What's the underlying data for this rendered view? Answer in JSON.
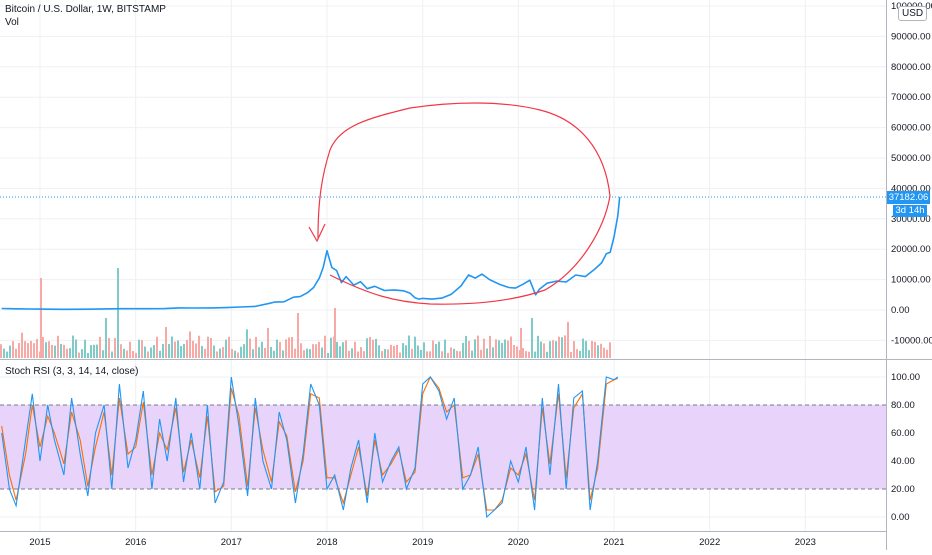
{
  "header": {
    "title": "Bitcoin / U.S. Dollar, 1W, BITSTAMP",
    "volume_label": "Vol",
    "currency": "USD"
  },
  "oscillator": {
    "title": "Stoch RSI (3, 3, 14, 14, close)"
  },
  "price_badge": {
    "value": "37182.06",
    "countdown": "3d 14h"
  },
  "colors": {
    "price_line": "#2196f3",
    "k_line": "#2196f3",
    "d_line": "#ff6d00",
    "band_fill": "#e8d4fb",
    "annotation": "#f23645",
    "volume_up": "#7ecbc7",
    "volume_down": "#f6a9a5",
    "grid": "#eef0f3"
  },
  "chart_data": [
    {
      "type": "line",
      "title": "Bitcoin / U.S. Dollar, 1W, BITSTAMP",
      "x_tick_labels": [
        "2015",
        "2016",
        "2017",
        "2018",
        "2019",
        "2020",
        "2021",
        "2022",
        "2023"
      ],
      "y_tick_labels": [
        "-10000.00",
        "0.00",
        "10000.00",
        "20000.00",
        "30000.00",
        "40000.00",
        "50000.00",
        "60000.00",
        "70000.00",
        "80000.00",
        "90000.00",
        "100000.00"
      ],
      "ylim": [
        -14000,
        101000
      ],
      "xlim": [
        2014.6,
        2023.9
      ],
      "log_scale": false,
      "grid": true,
      "last_value": 37182.06,
      "series": [
        {
          "name": "Bitcoin / U.S. Dollar",
          "x": [
            2014.6,
            2014.75,
            2014.9,
            2015.0,
            2015.1,
            2015.25,
            2015.5,
            2015.75,
            2015.85,
            2015.95,
            2016.1,
            2016.3,
            2016.45,
            2016.6,
            2016.8,
            2016.95,
            2017.1,
            2017.25,
            2017.4,
            2017.45,
            2017.55,
            2017.65,
            2017.72,
            2017.8,
            2017.86,
            2017.92,
            2017.96,
            2018.0,
            2018.05,
            2018.1,
            2018.15,
            2018.2,
            2018.28,
            2018.35,
            2018.42,
            2018.5,
            2018.6,
            2018.7,
            2018.8,
            2018.87,
            2018.92,
            2018.96,
            2019.0,
            2019.1,
            2019.2,
            2019.3,
            2019.4,
            2019.48,
            2019.55,
            2019.62,
            2019.7,
            2019.8,
            2019.9,
            2019.97,
            2020.05,
            2020.12,
            2020.18,
            2020.22,
            2020.3,
            2020.4,
            2020.5,
            2020.6,
            2020.7,
            2020.8,
            2020.87,
            2020.92,
            2020.96,
            2021.0,
            2021.04,
            2021.06
          ],
          "values": [
            480,
            380,
            320,
            280,
            250,
            240,
            260,
            380,
            420,
            440,
            420,
            450,
            680,
            650,
            700,
            780,
            1000,
            1200,
            2200,
            2600,
            2700,
            4200,
            4400,
            5800,
            7400,
            10500,
            14000,
            19500,
            14000,
            13000,
            9000,
            11000,
            8200,
            9300,
            7000,
            7800,
            6400,
            6600,
            6300,
            5500,
            4000,
            3600,
            3800,
            3600,
            3900,
            5200,
            7900,
            11500,
            10500,
            11800,
            10000,
            8500,
            7400,
            7200,
            8500,
            9800,
            5000,
            6800,
            8800,
            9500,
            9200,
            11500,
            11000,
            13500,
            15500,
            18500,
            19000,
            24000,
            31000,
            37182
          ]
        }
      ]
    },
    {
      "type": "bar",
      "title": "Vol",
      "note": "weekly volume histogram, relative scale"
    },
    {
      "type": "line",
      "title": "Stoch RSI (3, 3, 14, 14, close)",
      "y_tick_labels": [
        "0.00",
        "20.00",
        "40.00",
        "60.00",
        "80.00",
        "100.00"
      ],
      "ylim": [
        -10,
        107
      ],
      "band": [
        20,
        80
      ],
      "x": [
        2014.6,
        2014.68,
        2014.75,
        2014.85,
        2014.92,
        2015.0,
        2015.08,
        2015.15,
        2015.25,
        2015.33,
        2015.42,
        2015.5,
        2015.58,
        2015.67,
        2015.75,
        2015.83,
        2015.92,
        2016.0,
        2016.08,
        2016.17,
        2016.25,
        2016.33,
        2016.42,
        2016.5,
        2016.58,
        2016.67,
        2016.75,
        2016.83,
        2016.92,
        2017.0,
        2017.08,
        2017.17,
        2017.25,
        2017.33,
        2017.42,
        2017.5,
        2017.58,
        2017.67,
        2017.75,
        2017.83,
        2017.92,
        2018.0,
        2018.08,
        2018.17,
        2018.25,
        2018.33,
        2018.42,
        2018.5,
        2018.58,
        2018.67,
        2018.75,
        2018.83,
        2018.92,
        2019.0,
        2019.08,
        2019.17,
        2019.25,
        2019.33,
        2019.42,
        2019.5,
        2019.58,
        2019.67,
        2019.75,
        2019.83,
        2019.92,
        2020.0,
        2020.08,
        2020.17,
        2020.25,
        2020.33,
        2020.42,
        2020.5,
        2020.58,
        2020.67,
        2020.75,
        2020.83,
        2020.92,
        2021.0,
        2021.04
      ],
      "series": [
        {
          "name": "K",
          "values": [
            60,
            20,
            8,
            55,
            88,
            40,
            80,
            55,
            30,
            85,
            45,
            15,
            60,
            80,
            20,
            95,
            35,
            55,
            90,
            20,
            70,
            40,
            85,
            25,
            60,
            20,
            80,
            10,
            25,
            100,
            65,
            15,
            85,
            40,
            20,
            75,
            55,
            10,
            45,
            95,
            80,
            20,
            30,
            5,
            35,
            55,
            10,
            60,
            25,
            40,
            50,
            20,
            35,
            95,
            100,
            90,
            70,
            85,
            20,
            30,
            50,
            0,
            5,
            10,
            40,
            25,
            50,
            5,
            85,
            30,
            95,
            20,
            85,
            90,
            5,
            40,
            100,
            98,
            100
          ]
        },
        {
          "name": "D",
          "values": [
            65,
            30,
            12,
            45,
            80,
            50,
            72,
            60,
            38,
            75,
            55,
            22,
            50,
            75,
            30,
            85,
            45,
            50,
            82,
            30,
            60,
            48,
            78,
            32,
            55,
            28,
            72,
            18,
            22,
            92,
            72,
            22,
            78,
            48,
            25,
            68,
            58,
            18,
            40,
            88,
            85,
            28,
            28,
            10,
            30,
            50,
            15,
            55,
            30,
            38,
            48,
            25,
            32,
            88,
            100,
            92,
            75,
            80,
            28,
            30,
            45,
            5,
            5,
            12,
            35,
            30,
            45,
            12,
            78,
            38,
            88,
            28,
            78,
            88,
            12,
            35,
            95,
            98,
            99
          ]
        }
      ]
    }
  ]
}
